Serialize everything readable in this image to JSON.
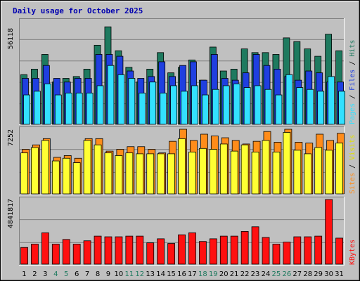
{
  "chart_data": {
    "type": "bar",
    "title": "Daily usage for October 2025",
    "colors": {
      "hits": "#1e7a5f",
      "files": "#1f3fe0",
      "pages": "#33e0ff",
      "visits": "#ffff33",
      "sites": "#ff8c1a",
      "kbytes": "#ff1010",
      "plot_bg": "#c0c0c0",
      "weekday_label": "#000000",
      "weekend_label": "#1e7a5f"
    },
    "right_labels": {
      "top": {
        "pages": "Pages",
        "sep1": " / ",
        "files": "Files",
        "sep2": " / ",
        "hits": "Hits"
      },
      "middle": {
        "sites": "Sites",
        "sep": " / ",
        "visits": "Visits"
      },
      "bottom": {
        "kbytes": "KBytes"
      }
    },
    "days": [
      {
        "day": "1",
        "weekend": false
      },
      {
        "day": "2",
        "weekend": false
      },
      {
        "day": "3",
        "weekend": false
      },
      {
        "day": "4",
        "weekend": true
      },
      {
        "day": "5",
        "weekend": true
      },
      {
        "day": "6",
        "weekend": false
      },
      {
        "day": "7",
        "weekend": false
      },
      {
        "day": "8",
        "weekend": false
      },
      {
        "day": "9",
        "weekend": false
      },
      {
        "day": "10",
        "weekend": false
      },
      {
        "day": "11",
        "weekend": true
      },
      {
        "day": "12",
        "weekend": true
      },
      {
        "day": "13",
        "weekend": false
      },
      {
        "day": "14",
        "weekend": false
      },
      {
        "day": "15",
        "weekend": false
      },
      {
        "day": "16",
        "weekend": false
      },
      {
        "day": "17",
        "weekend": false
      },
      {
        "day": "18",
        "weekend": true
      },
      {
        "day": "19",
        "weekend": true
      },
      {
        "day": "20",
        "weekend": false
      },
      {
        "day": "21",
        "weekend": false
      },
      {
        "day": "22",
        "weekend": false
      },
      {
        "day": "23",
        "weekend": false
      },
      {
        "day": "24",
        "weekend": false
      },
      {
        "day": "25",
        "weekend": true
      },
      {
        "day": "26",
        "weekend": true
      },
      {
        "day": "27",
        "weekend": false
      },
      {
        "day": "28",
        "weekend": false
      },
      {
        "day": "29",
        "weekend": false
      },
      {
        "day": "30",
        "weekend": false
      },
      {
        "day": "31",
        "weekend": false
      }
    ],
    "panels": {
      "top": {
        "ymax": 56118,
        "tick_label": "56118",
        "series": [
          {
            "key": "hits",
            "values": [
              27000,
              30000,
              38000,
              23000,
              25000,
              26000,
              30000,
              43000,
              53000,
              40000,
              31000,
              23000,
              30000,
              39000,
              28000,
              31000,
              35000,
              24000,
              42000,
              29000,
              30000,
              41000,
              39000,
              39000,
              38000,
              47000,
              45000,
              41000,
              37000,
              49000,
              40000
            ]
          },
          {
            "key": "files",
            "values": [
              25000,
              25000,
              32000,
              25000,
              23000,
              25000,
              25000,
              38000,
              38000,
              37000,
              29000,
              25000,
              26000,
              34000,
              26000,
              32000,
              34000,
              24000,
              38000,
              25000,
              24000,
              28000,
              38000,
              32000,
              30000,
              26000,
              24000,
              29000,
              28000,
              23000,
              23000
            ]
          },
          {
            "key": "pages",
            "values": [
              16000,
              18000,
              22000,
              16000,
              17000,
              17000,
              17000,
              21000,
              32000,
              27000,
              25000,
              17000,
              23000,
              17000,
              21000,
              18000,
              21000,
              16000,
              19000,
              21000,
              22000,
              20000,
              21000,
              19000,
              16000,
              27000,
              20000,
              19000,
              18000,
              26000,
              18000
            ]
          }
        ]
      },
      "middle": {
        "ymax": 7252,
        "tick_label": "7252",
        "series": [
          {
            "key": "sites",
            "values": [
              5000,
              5500,
              6200,
              4100,
              4300,
              4000,
              6200,
              6200,
              4800,
              5000,
              5300,
              5300,
              5000,
              4600,
              5900,
              7252,
              6000,
              6700,
              6500,
              6300,
              6000,
              5600,
              5900,
              7000,
              5800,
              7252,
              5800,
              5700,
              6700,
              6000,
              6800
            ]
          },
          {
            "key": "visits",
            "values": [
              4600,
              5200,
              6000,
              3700,
              4000,
              3500,
              6000,
              5500,
              4600,
              4300,
              4600,
              4500,
              4500,
              4500,
              4500,
              6200,
              4700,
              5100,
              5000,
              5600,
              4800,
              5500,
              4700,
              6000,
              4700,
              6900,
              4900,
              4500,
              5200,
              4900,
              5700
            ]
          }
        ]
      },
      "bottom": {
        "ymax": 4841817,
        "tick_label": "4841817",
        "series": [
          {
            "key": "kbytes",
            "values": [
              1250000,
              1500000,
              2350000,
              1500000,
              1850000,
              1500000,
              1750000,
              2100000,
              2050000,
              2050000,
              2100000,
              2100000,
              1600000,
              1900000,
              1550000,
              2200000,
              2350000,
              1700000,
              1900000,
              2100000,
              2100000,
              2450000,
              2800000,
              2000000,
              1500000,
              1650000,
              2050000,
              2050000,
              2100000,
              4841817,
              1950000
            ]
          }
        ]
      }
    }
  }
}
